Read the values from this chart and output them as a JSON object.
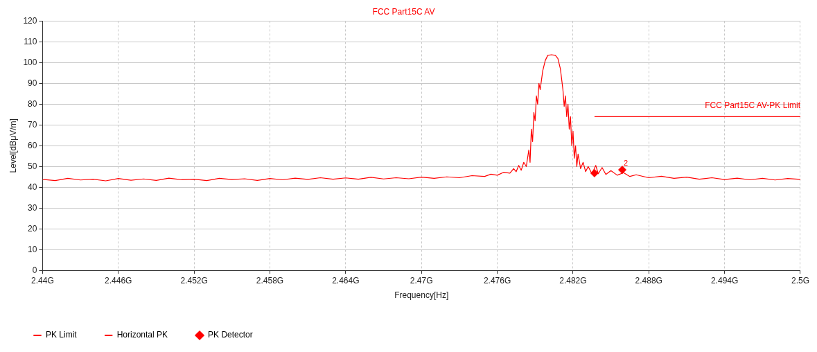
{
  "chart_data": {
    "type": "line",
    "title": "FCC Part15C AV",
    "xlabel": "Frequency[Hz]",
    "ylabel": "Level[dBμV/m]",
    "xlim": [
      2.44,
      2.5
    ],
    "xticks": [
      {
        "value": 2.44,
        "label": "2.44G"
      },
      {
        "value": 2.446,
        "label": "2.446G"
      },
      {
        "value": 2.452,
        "label": "2.452G"
      },
      {
        "value": 2.458,
        "label": "2.458G"
      },
      {
        "value": 2.464,
        "label": "2.464G"
      },
      {
        "value": 2.47,
        "label": "2.47G"
      },
      {
        "value": 2.476,
        "label": "2.476G"
      },
      {
        "value": 2.482,
        "label": "2.482G"
      },
      {
        "value": 2.488,
        "label": "2.488G"
      },
      {
        "value": 2.494,
        "label": "2.494G"
      },
      {
        "value": 2.5,
        "label": "2.5G"
      }
    ],
    "ylim": [
      0,
      120
    ],
    "yticks": [
      0,
      10,
      20,
      30,
      40,
      50,
      60,
      70,
      80,
      90,
      100,
      110,
      120
    ],
    "grid": true,
    "legend": "bottom left",
    "annotations": [
      {
        "text": "FCC Part15C AV-PK Limit",
        "x": 2.5,
        "y": 74
      },
      {
        "text": "2",
        "x": 2.4859,
        "y": 48.4
      }
    ],
    "series": [
      {
        "name": "PK Limit",
        "color": "#ff0000",
        "marker": "none",
        "x": [
          2.4837,
          2.5
        ],
        "values": [
          74,
          74
        ]
      },
      {
        "name": "Horizontal PK",
        "color": "#ff0000",
        "marker": "none",
        "x": [
          2.44,
          2.441,
          2.442,
          2.443,
          2.444,
          2.445,
          2.446,
          2.447,
          2.448,
          2.449,
          2.45,
          2.451,
          2.452,
          2.453,
          2.454,
          2.455,
          2.456,
          2.457,
          2.458,
          2.459,
          2.46,
          2.461,
          2.462,
          2.463,
          2.464,
          2.465,
          2.466,
          2.467,
          2.468,
          2.469,
          2.47,
          2.471,
          2.472,
          2.473,
          2.474,
          2.475,
          2.4755,
          2.476,
          2.4765,
          2.477,
          2.4773,
          2.4775,
          2.4777,
          2.4779,
          2.4781,
          2.4783,
          2.4785,
          2.4786,
          2.4787,
          2.4788,
          2.4789,
          2.479,
          2.4791,
          2.4792,
          2.4793,
          2.4794,
          2.4796,
          2.4798,
          2.48,
          2.4803,
          2.4806,
          2.4808,
          2.481,
          2.4811,
          2.4812,
          2.4813,
          2.4814,
          2.4815,
          2.4816,
          2.4817,
          2.4818,
          2.4819,
          2.482,
          2.4821,
          2.4822,
          2.4823,
          2.4824,
          2.4826,
          2.4828,
          2.483,
          2.4832,
          2.4835,
          2.4838,
          2.484,
          2.4843,
          2.4846,
          2.485,
          2.4855,
          2.486,
          2.4865,
          2.487,
          2.488,
          2.489,
          2.49,
          2.491,
          2.492,
          2.493,
          2.494,
          2.495,
          2.496,
          2.497,
          2.498,
          2.499,
          2.5
        ],
        "values": [
          43.8,
          43.2,
          44.3,
          43.5,
          43.9,
          43.1,
          44.2,
          43.4,
          44.0,
          43.3,
          44.4,
          43.6,
          43.9,
          43.2,
          44.3,
          43.7,
          44.1,
          43.3,
          44.2,
          43.6,
          44.4,
          43.8,
          44.6,
          43.9,
          44.5,
          43.9,
          44.8,
          44.0,
          44.6,
          44.1,
          44.9,
          44.3,
          45.0,
          44.6,
          45.6,
          45.2,
          46.3,
          45.8,
          47.2,
          46.8,
          49,
          47.5,
          50.5,
          48.2,
          52,
          50,
          58,
          52,
          68,
          62,
          76,
          72,
          84,
          80,
          90,
          87,
          96,
          101,
          103.5,
          103.8,
          103.5,
          102,
          97,
          92,
          87,
          79,
          84,
          74,
          80,
          68,
          74,
          60,
          67,
          54,
          60,
          50,
          56,
          49,
          52,
          47.5,
          50,
          46.5,
          50.5,
          46.5,
          49.5,
          46.2,
          48,
          45.8,
          47,
          45.2,
          46,
          44.6,
          45.3,
          44.3,
          44.9,
          43.9,
          44.6,
          43.7,
          44.4,
          43.6,
          44.3,
          43.5,
          44.2,
          43.8
        ]
      },
      {
        "name": "PK Detector",
        "type": "scatter",
        "color": "#ff0000",
        "marker": "diamond",
        "x": [
          2.4837,
          2.4859
        ],
        "values": [
          46.8,
          48.4
        ]
      }
    ]
  }
}
